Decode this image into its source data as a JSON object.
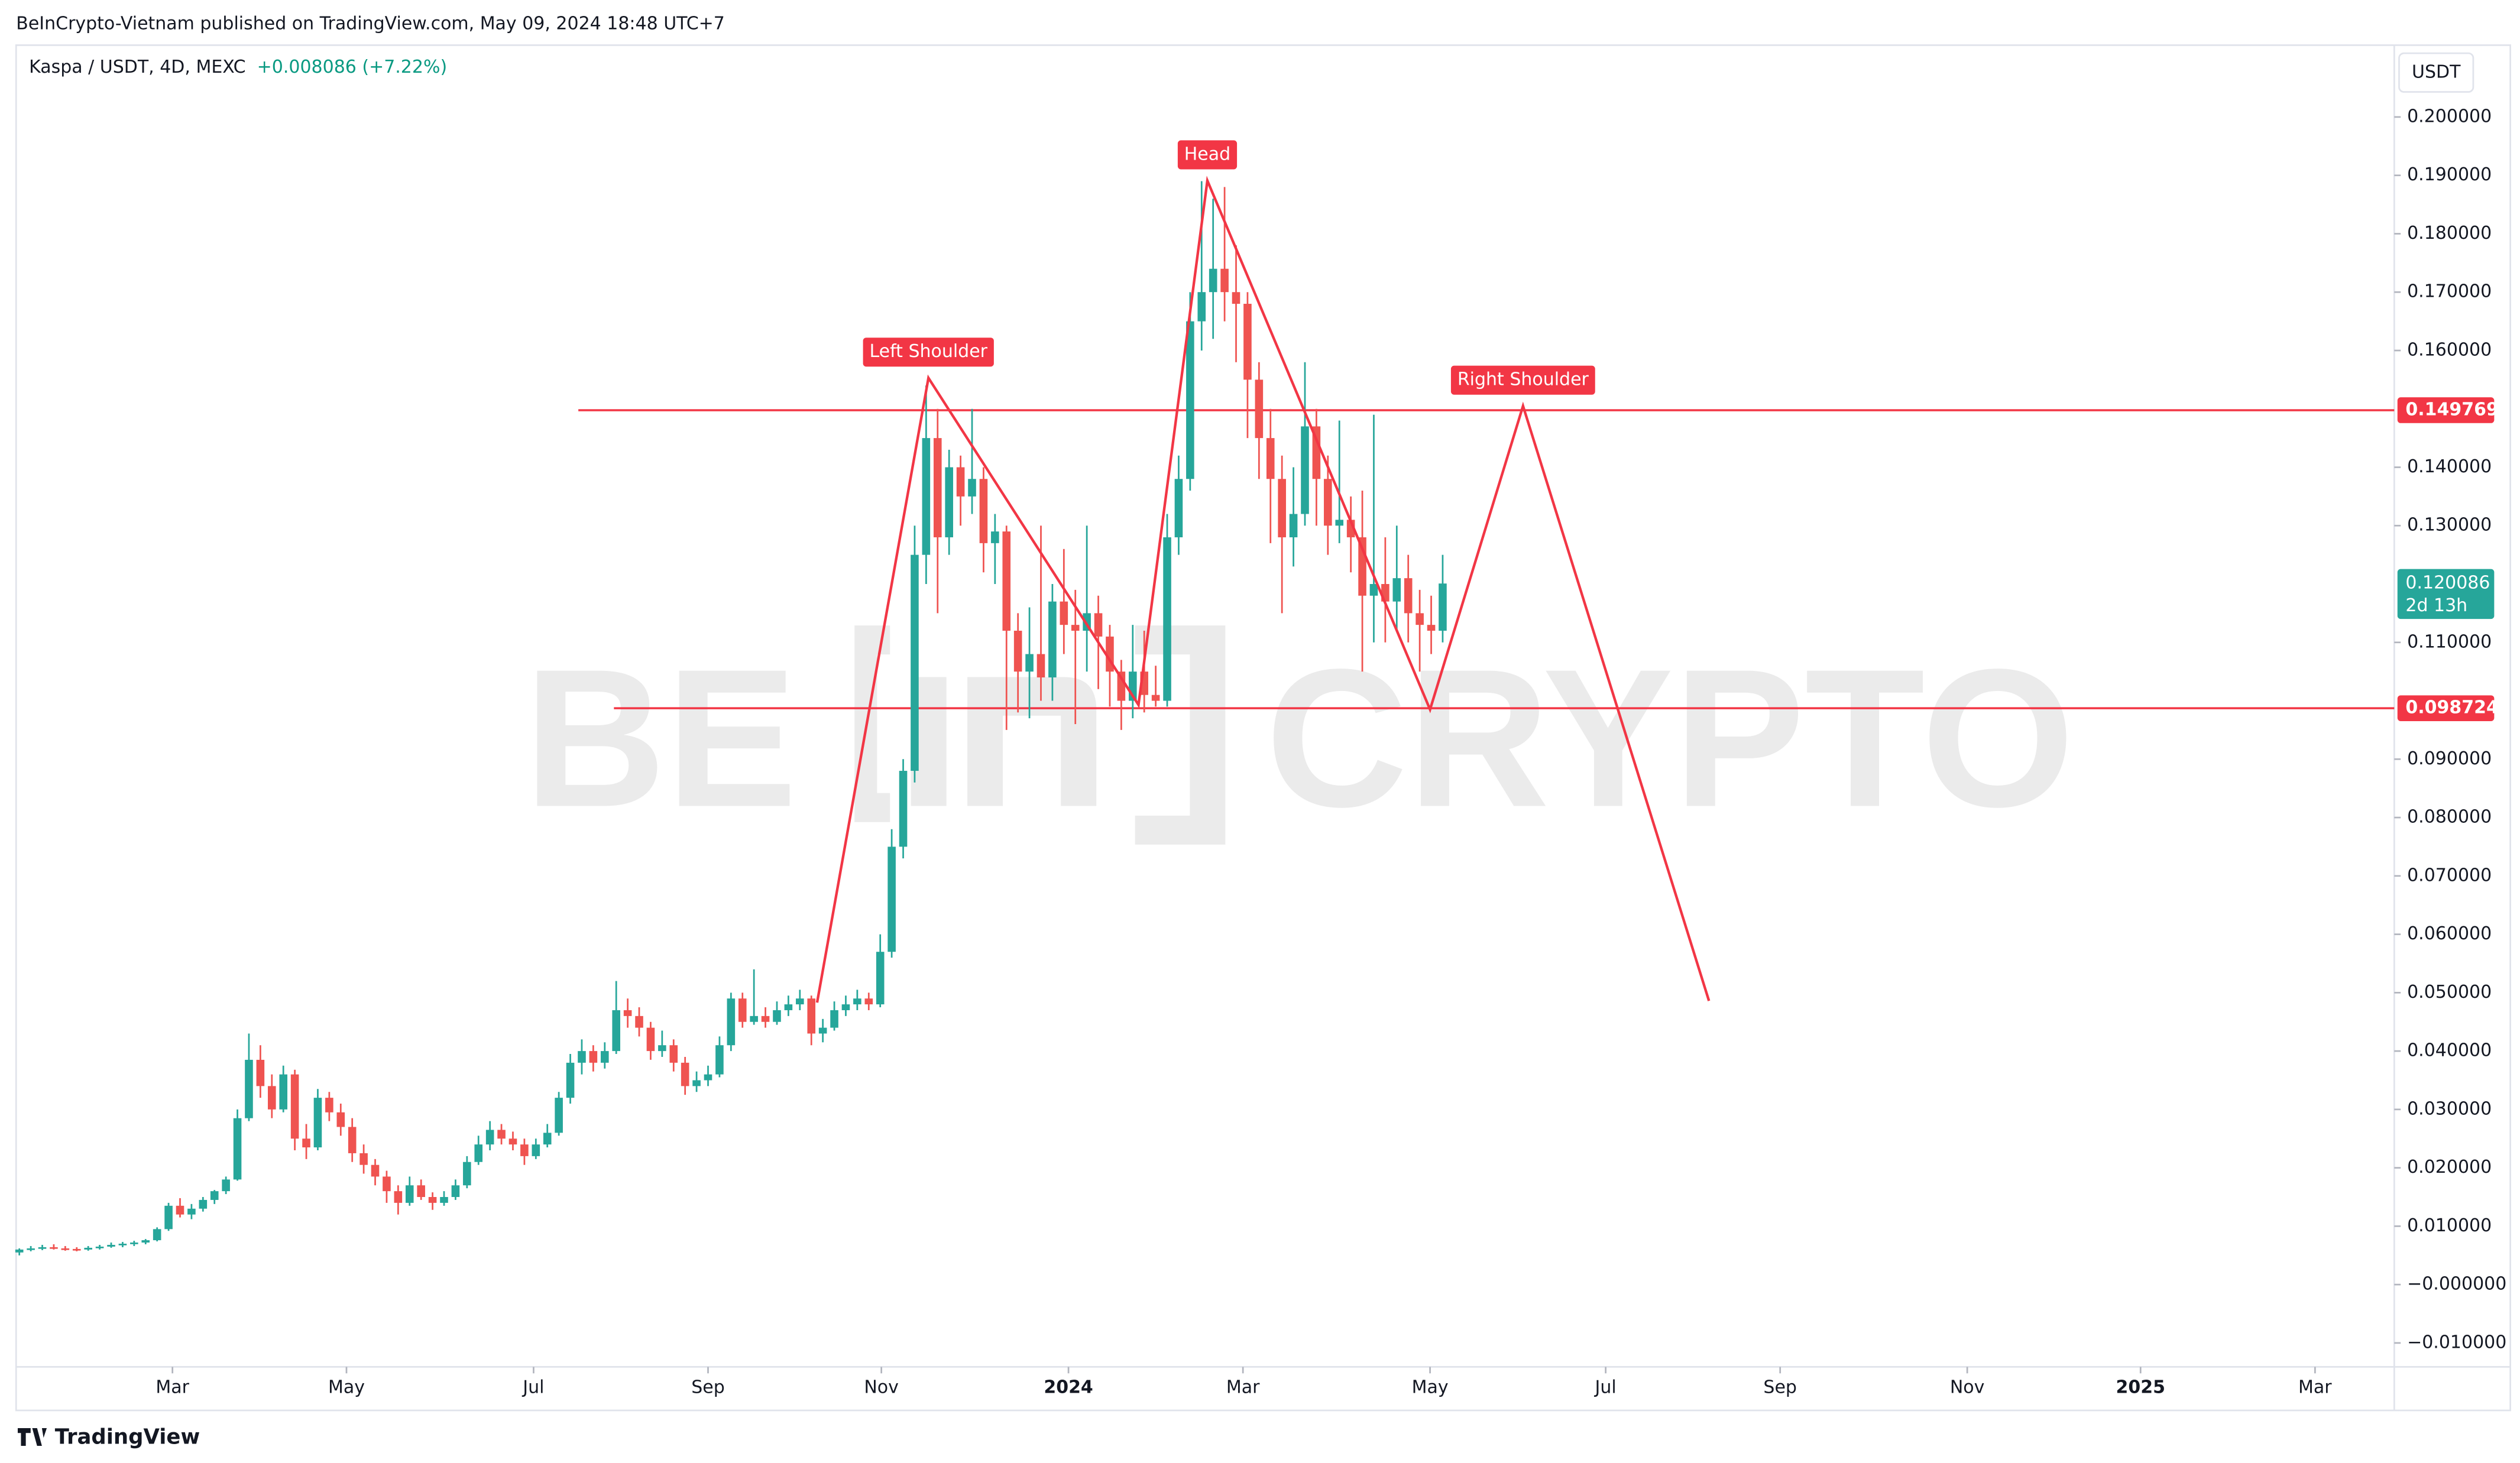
{
  "header": {
    "published": "BeInCrypto-Vietnam published on TradingView.com, May 09, 2024 18:48 UTC+7"
  },
  "footer": {
    "brand": "TradingView"
  },
  "watermark": {
    "left": "BE",
    "right": "CRYPTO"
  },
  "chart_data": {
    "type": "candlestick",
    "title": "Kaspa / USDT, 4D, MEXC",
    "change": "+0.008086 (+7.22%)",
    "currency": "USDT",
    "up_color": "#26a69a",
    "down_color": "#ef5350",
    "grid": false,
    "xlim": [
      -0.28,
      206.9
    ],
    "xticks": [
      {
        "value": 13.34,
        "label": "Mar"
      },
      {
        "value": 28.5,
        "label": "May"
      },
      {
        "value": 44.8,
        "label": "Jul"
      },
      {
        "value": 60.0,
        "label": "Sep"
      },
      {
        "value": 75.1,
        "label": "Nov"
      },
      {
        "value": 91.4,
        "label": "2024"
      },
      {
        "value": 106.6,
        "label": "Mar"
      },
      {
        "value": 122.9,
        "label": "May"
      },
      {
        "value": 138.2,
        "label": "Jul"
      },
      {
        "value": 153.4,
        "label": "Sep"
      },
      {
        "value": 169.7,
        "label": "Nov"
      },
      {
        "value": 184.8,
        "label": "2025"
      },
      {
        "value": 200.0,
        "label": "Mar"
      }
    ],
    "ylim": [
      -0.0141,
      0.2123
    ],
    "yticks": [
      {
        "value": 0.2,
        "label": "0.200000"
      },
      {
        "value": 0.19,
        "label": "0.190000"
      },
      {
        "value": 0.18,
        "label": "0.180000"
      },
      {
        "value": 0.17,
        "label": "0.170000"
      },
      {
        "value": 0.16,
        "label": "0.160000"
      },
      {
        "value": 0.14,
        "label": "0.140000"
      },
      {
        "value": 0.13,
        "label": "0.130000"
      },
      {
        "value": 0.11,
        "label": "0.110000"
      },
      {
        "value": 0.09,
        "label": "0.090000"
      },
      {
        "value": 0.08,
        "label": "0.080000"
      },
      {
        "value": 0.07,
        "label": "0.070000"
      },
      {
        "value": 0.06,
        "label": "0.060000"
      },
      {
        "value": 0.05,
        "label": "0.050000"
      },
      {
        "value": 0.04,
        "label": "0.040000"
      },
      {
        "value": 0.03,
        "label": "0.030000"
      },
      {
        "value": 0.02,
        "label": "0.020000"
      },
      {
        "value": 0.01,
        "label": "0.010000"
      },
      {
        "value": 0,
        "label": "−0.000000"
      },
      {
        "value": -0.01,
        "label": "−0.010000"
      }
    ],
    "ohlc": [
      [
        0.0055,
        0.0062,
        0.005,
        0.006
      ],
      [
        0.006,
        0.0066,
        0.0057,
        0.0062
      ],
      [
        0.0062,
        0.0068,
        0.0059,
        0.0064
      ],
      [
        0.0064,
        0.0069,
        0.006,
        0.0062
      ],
      [
        0.0062,
        0.0066,
        0.0058,
        0.0061
      ],
      [
        0.0061,
        0.0064,
        0.0057,
        0.006
      ],
      [
        0.006,
        0.0066,
        0.0058,
        0.0063
      ],
      [
        0.0063,
        0.0068,
        0.006,
        0.0065
      ],
      [
        0.0065,
        0.0072,
        0.0063,
        0.0068
      ],
      [
        0.0068,
        0.0073,
        0.0064,
        0.007
      ],
      [
        0.007,
        0.0075,
        0.0066,
        0.0072
      ],
      [
        0.0072,
        0.0078,
        0.0069,
        0.0076
      ],
      [
        0.0076,
        0.0098,
        0.0074,
        0.0095
      ],
      [
        0.0095,
        0.014,
        0.0092,
        0.0135
      ],
      [
        0.0135,
        0.0148,
        0.0115,
        0.012
      ],
      [
        0.012,
        0.0138,
        0.0112,
        0.013
      ],
      [
        0.013,
        0.015,
        0.0125,
        0.0145
      ],
      [
        0.0145,
        0.0162,
        0.0138,
        0.016
      ],
      [
        0.016,
        0.0185,
        0.0155,
        0.018
      ],
      [
        0.018,
        0.03,
        0.0178,
        0.0285
      ],
      [
        0.0285,
        0.043,
        0.028,
        0.0385
      ],
      [
        0.0385,
        0.041,
        0.032,
        0.034
      ],
      [
        0.034,
        0.036,
        0.0285,
        0.03
      ],
      [
        0.03,
        0.0375,
        0.0295,
        0.036
      ],
      [
        0.036,
        0.0368,
        0.023,
        0.025
      ],
      [
        0.025,
        0.0275,
        0.0215,
        0.0235
      ],
      [
        0.0235,
        0.0335,
        0.023,
        0.032
      ],
      [
        0.032,
        0.033,
        0.028,
        0.0295
      ],
      [
        0.0295,
        0.031,
        0.0255,
        0.027
      ],
      [
        0.027,
        0.0285,
        0.021,
        0.0225
      ],
      [
        0.0225,
        0.024,
        0.019,
        0.0205
      ],
      [
        0.0205,
        0.0215,
        0.017,
        0.0185
      ],
      [
        0.0185,
        0.0195,
        0.014,
        0.016
      ],
      [
        0.016,
        0.017,
        0.012,
        0.014
      ],
      [
        0.014,
        0.0185,
        0.0135,
        0.017
      ],
      [
        0.017,
        0.018,
        0.0145,
        0.015
      ],
      [
        0.015,
        0.0158,
        0.0128,
        0.014
      ],
      [
        0.014,
        0.016,
        0.0135,
        0.015
      ],
      [
        0.015,
        0.018,
        0.0145,
        0.017
      ],
      [
        0.017,
        0.022,
        0.0165,
        0.021
      ],
      [
        0.021,
        0.0255,
        0.0205,
        0.024
      ],
      [
        0.024,
        0.028,
        0.023,
        0.0265
      ],
      [
        0.0265,
        0.0275,
        0.024,
        0.025
      ],
      [
        0.025,
        0.0262,
        0.023,
        0.024
      ],
      [
        0.024,
        0.025,
        0.0205,
        0.022
      ],
      [
        0.022,
        0.025,
        0.0215,
        0.024
      ],
      [
        0.024,
        0.0275,
        0.0235,
        0.026
      ],
      [
        0.026,
        0.033,
        0.0255,
        0.032
      ],
      [
        0.032,
        0.0395,
        0.031,
        0.038
      ],
      [
        0.038,
        0.042,
        0.036,
        0.04
      ],
      [
        0.04,
        0.041,
        0.0365,
        0.038
      ],
      [
        0.038,
        0.0415,
        0.037,
        0.04
      ],
      [
        0.04,
        0.052,
        0.0395,
        0.047
      ],
      [
        0.047,
        0.049,
        0.044,
        0.046
      ],
      [
        0.046,
        0.0475,
        0.0425,
        0.044
      ],
      [
        0.044,
        0.045,
        0.0385,
        0.04
      ],
      [
        0.04,
        0.0435,
        0.039,
        0.041
      ],
      [
        0.041,
        0.042,
        0.0365,
        0.038
      ],
      [
        0.038,
        0.039,
        0.0325,
        0.034
      ],
      [
        0.034,
        0.0365,
        0.033,
        0.035
      ],
      [
        0.035,
        0.0375,
        0.034,
        0.036
      ],
      [
        0.036,
        0.0425,
        0.0355,
        0.041
      ],
      [
        0.041,
        0.05,
        0.04,
        0.049
      ],
      [
        0.049,
        0.05,
        0.044,
        0.045
      ],
      [
        0.045,
        0.054,
        0.0445,
        0.046
      ],
      [
        0.046,
        0.0475,
        0.044,
        0.045
      ],
      [
        0.045,
        0.0485,
        0.0445,
        0.047
      ],
      [
        0.047,
        0.0495,
        0.046,
        0.048
      ],
      [
        0.048,
        0.0505,
        0.047,
        0.049
      ],
      [
        0.049,
        0.0495,
        0.041,
        0.043
      ],
      [
        0.043,
        0.0455,
        0.0415,
        0.044
      ],
      [
        0.044,
        0.0485,
        0.0435,
        0.047
      ],
      [
        0.047,
        0.0495,
        0.046,
        0.048
      ],
      [
        0.048,
        0.0505,
        0.047,
        0.049
      ],
      [
        0.049,
        0.05,
        0.047,
        0.048
      ],
      [
        0.048,
        0.06,
        0.0475,
        0.057
      ],
      [
        0.057,
        0.078,
        0.056,
        0.075
      ],
      [
        0.075,
        0.09,
        0.073,
        0.088
      ],
      [
        0.088,
        0.13,
        0.086,
        0.125
      ],
      [
        0.125,
        0.154,
        0.12,
        0.145
      ],
      [
        0.145,
        0.15,
        0.115,
        0.128
      ],
      [
        0.128,
        0.143,
        0.125,
        0.14
      ],
      [
        0.14,
        0.142,
        0.13,
        0.135
      ],
      [
        0.135,
        0.15,
        0.132,
        0.138
      ],
      [
        0.138,
        0.14,
        0.122,
        0.127
      ],
      [
        0.127,
        0.132,
        0.12,
        0.129
      ],
      [
        0.129,
        0.13,
        0.095,
        0.112
      ],
      [
        0.112,
        0.115,
        0.098,
        0.105
      ],
      [
        0.105,
        0.116,
        0.097,
        0.108
      ],
      [
        0.108,
        0.13,
        0.1,
        0.104
      ],
      [
        0.104,
        0.12,
        0.1,
        0.117
      ],
      [
        0.117,
        0.126,
        0.108,
        0.113
      ],
      [
        0.113,
        0.119,
        0.096,
        0.112
      ],
      [
        0.112,
        0.13,
        0.105,
        0.115
      ],
      [
        0.115,
        0.118,
        0.102,
        0.111
      ],
      [
        0.111,
        0.113,
        0.099,
        0.105
      ],
      [
        0.105,
        0.107,
        0.095,
        0.1
      ],
      [
        0.1,
        0.113,
        0.097,
        0.105
      ],
      [
        0.105,
        0.112,
        0.098,
        0.101
      ],
      [
        0.101,
        0.106,
        0.099,
        0.1
      ],
      [
        0.1,
        0.132,
        0.099,
        0.128
      ],
      [
        0.128,
        0.142,
        0.125,
        0.138
      ],
      [
        0.138,
        0.17,
        0.136,
        0.165
      ],
      [
        0.165,
        0.189,
        0.16,
        0.17
      ],
      [
        0.17,
        0.186,
        0.162,
        0.174
      ],
      [
        0.174,
        0.188,
        0.165,
        0.17
      ],
      [
        0.17,
        0.178,
        0.158,
        0.168
      ],
      [
        0.168,
        0.17,
        0.145,
        0.155
      ],
      [
        0.155,
        0.158,
        0.138,
        0.145
      ],
      [
        0.145,
        0.15,
        0.127,
        0.138
      ],
      [
        0.138,
        0.142,
        0.115,
        0.128
      ],
      [
        0.128,
        0.14,
        0.123,
        0.132
      ],
      [
        0.132,
        0.158,
        0.13,
        0.147
      ],
      [
        0.147,
        0.15,
        0.13,
        0.138
      ],
      [
        0.138,
        0.142,
        0.125,
        0.13
      ],
      [
        0.13,
        0.148,
        0.127,
        0.131
      ],
      [
        0.131,
        0.135,
        0.122,
        0.128
      ],
      [
        0.128,
        0.136,
        0.105,
        0.118
      ],
      [
        0.118,
        0.149,
        0.11,
        0.12
      ],
      [
        0.12,
        0.128,
        0.11,
        0.117
      ],
      [
        0.117,
        0.13,
        0.112,
        0.121
      ],
      [
        0.121,
        0.125,
        0.11,
        0.115
      ],
      [
        0.115,
        0.119,
        0.105,
        0.113
      ],
      [
        0.113,
        0.118,
        0.108,
        0.112
      ],
      [
        0.112,
        0.125,
        0.11,
        0.120086
      ]
    ],
    "pattern": {
      "color": "#f23645",
      "x": [
        69.5,
        79.2,
        97.5,
        103.5,
        122.9,
        131,
        147.2
      ],
      "y": [
        0.0483,
        0.1553,
        0.0993,
        0.1891,
        0.0985,
        0.1505,
        0.0486
      ]
    },
    "annotations": [
      "Left Shoulder",
      "Head",
      "Right Shoulder"
    ],
    "levels": [
      {
        "value": 0.149769,
        "start": 48.7
      },
      {
        "value": 0.098724,
        "start": 51.8
      }
    ],
    "last_price": 0.120086,
    "countdown": "2d 13h"
  }
}
